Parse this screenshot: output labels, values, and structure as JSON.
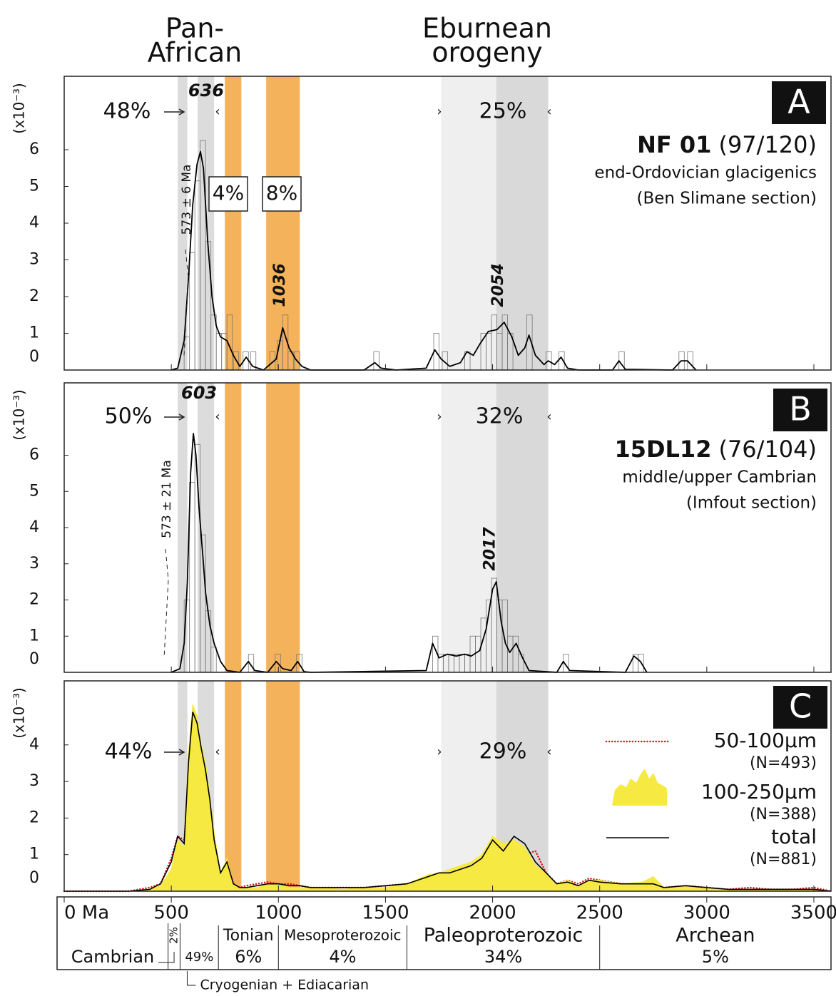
{
  "header": {
    "left": [
      "Pan-",
      "African"
    ],
    "right": [
      "Eburnean",
      "orogeny"
    ]
  },
  "x_axis": {
    "xlim": [
      0,
      3580
    ],
    "xticks": [
      {
        "value": 0,
        "label": "0 Ma"
      },
      500,
      1000,
      1500,
      2000,
      2500,
      3000,
      3500
    ]
  },
  "bands": [
    {
      "range": [
        530,
        575
      ],
      "color": "#dcdcdc"
    },
    {
      "range": [
        623,
        700
      ],
      "color": "#dcdcdc"
    },
    {
      "range": [
        750,
        827
      ],
      "color": "#f4b25a"
    },
    {
      "range": [
        943,
        1100
      ],
      "color": "#f4b25a"
    },
    {
      "range": [
        1760,
        2017
      ],
      "color": "#efefef"
    },
    {
      "range": [
        2017,
        2260
      ],
      "color": "#d9d9d9"
    }
  ],
  "chart_data": [
    {
      "type": "kde",
      "label": "A",
      "sample": "NF 01",
      "count": "(97/120)",
      "description": [
        "end-Ordovician glacigenics",
        "(Ben Slimane section)"
      ],
      "ylabel": "(x10⁻³)",
      "ylim": [
        0,
        8
      ],
      "yticks": [
        0,
        1,
        2,
        3,
        4,
        5,
        6
      ],
      "percents": [
        "48%",
        "25%"
      ],
      "boxed_percents": [
        "4%",
        "8%"
      ],
      "age_note": "573 ± 6 Ma",
      "peaks": [
        636,
        1036,
        2054
      ],
      "curve": {
        "color": "#000000",
        "x": [
          500,
          530,
          560,
          580,
          600,
          620,
          636,
          650,
          670,
          690,
          710,
          730,
          760,
          790,
          820,
          850,
          880,
          930,
          960,
          990,
          1020,
          1050,
          1080,
          1110,
          1150,
          1400,
          1450,
          1480,
          1550,
          1690,
          1730,
          1760,
          1800,
          1850,
          1880,
          1910,
          1940,
          1980,
          2020,
          2054,
          2090,
          2120,
          2150,
          2170,
          2200,
          2240,
          2260,
          2290,
          2320,
          2350,
          2400,
          2560,
          2590,
          2620,
          2840,
          2880,
          2910,
          2950
        ],
        "values": [
          0,
          0.05,
          0.8,
          2.5,
          4.5,
          5.6,
          5.95,
          5.5,
          3.5,
          2.0,
          1.2,
          0.9,
          0.8,
          0.4,
          0.1,
          0.35,
          0.1,
          0,
          0.15,
          0.3,
          1.15,
          0.6,
          0.3,
          0.1,
          0,
          0,
          0.2,
          0.05,
          0,
          0.05,
          0.55,
          0.3,
          0.1,
          0.2,
          0.5,
          0.4,
          0.7,
          1.05,
          1.1,
          1.3,
          0.9,
          0.4,
          0.6,
          0.95,
          0.4,
          0.15,
          0.25,
          0.15,
          0.35,
          0.05,
          0,
          0,
          0.25,
          0.02,
          0,
          0.25,
          0.25,
          0
        ]
      },
      "histogram": {
        "color": "#777777",
        "bin_width": 25,
        "x": [
          560,
          585,
          610,
          635,
          660,
          685,
          710,
          735,
          760,
          790,
          835,
          870,
          960,
          995,
          1020,
          1045,
          1075,
          1445,
          1725,
          1765,
          1870,
          1945,
          1970,
          1995,
          2020,
          2045,
          2070,
          2160,
          2250,
          2310,
          2590,
          2870,
          2910
        ],
        "values": [
          0.9,
          3.2,
          5.15,
          6.25,
          3.5,
          1.5,
          1.0,
          1.0,
          1.5,
          0.5,
          0.5,
          0.5,
          0.5,
          0.8,
          1.5,
          0.5,
          0.5,
          0.5,
          1.0,
          0.5,
          0.5,
          1.0,
          1.0,
          1.5,
          1.0,
          1.5,
          1.0,
          1.5,
          0.5,
          0.5,
          0.5,
          0.5,
          0.5
        ]
      }
    },
    {
      "type": "kde",
      "label": "B",
      "sample": "15DL12",
      "count": "(76/104)",
      "description": [
        "middle/upper Cambrian",
        "(Imfout section)"
      ],
      "ylabel": "(x10⁻³)",
      "ylim": [
        0,
        8
      ],
      "yticks": [
        0,
        1,
        2,
        3,
        4,
        5,
        6
      ],
      "percents": [
        "50%",
        "32%"
      ],
      "age_note": "573 ± 21 Ma",
      "peaks": [
        603,
        2017
      ],
      "curve": {
        "color": "#000000",
        "x": [
          500,
          540,
          560,
          575,
          590,
          603,
          615,
          630,
          650,
          660,
          680,
          700,
          730,
          760,
          820,
          860,
          890,
          950,
          990,
          1020,
          1060,
          1090,
          1120,
          1150,
          1690,
          1720,
          1750,
          1790,
          1830,
          1870,
          1900,
          1940,
          1970,
          2000,
          2017,
          2040,
          2060,
          2080,
          2110,
          2140,
          2170,
          2300,
          2330,
          2360,
          2620,
          2660,
          2690,
          2720
        ],
        "values": [
          0,
          0.1,
          0.8,
          2.5,
          5.5,
          6.6,
          6.0,
          4.5,
          3.0,
          2.2,
          1.3,
          0.8,
          0.3,
          0.05,
          0,
          0.3,
          0.05,
          0,
          0.3,
          0.1,
          0.05,
          0.3,
          0.02,
          0,
          0.05,
          0.8,
          0.4,
          0.5,
          0.45,
          0.5,
          0.45,
          0.6,
          1.2,
          2.3,
          2.5,
          1.4,
          0.8,
          0.55,
          0.8,
          0.4,
          0.05,
          0,
          0.3,
          0.05,
          0,
          0.45,
          0.3,
          0
        ]
      },
      "histogram": {
        "color": "#777777",
        "bin_width": 25,
        "x": [
          560,
          585,
          610,
          635,
          660,
          685,
          860,
          985,
          1085,
          1720,
          1745,
          1770,
          1795,
          1820,
          1845,
          1870,
          1895,
          1920,
          1945,
          1970,
          1995,
          2020,
          2045,
          2070,
          2095,
          2120,
          2330,
          2655,
          2680
        ],
        "values": [
          2.0,
          5.25,
          6.3,
          3.8,
          1.7,
          0.7,
          0.5,
          0.5,
          0.5,
          1.0,
          0.5,
          0.5,
          0.5,
          0.5,
          0.5,
          0.5,
          1.0,
          1.0,
          1.5,
          2.0,
          2.6,
          2.0,
          2.0,
          1.0,
          1.0,
          0.5,
          0.5,
          0.5,
          0.5
        ]
      }
    },
    {
      "type": "multi",
      "label": "C",
      "ylabel": "(x10⁻³)",
      "ylim": [
        0,
        5.75
      ],
      "yticks": [
        0,
        1,
        2,
        3,
        4
      ],
      "percents": [
        "44%",
        "29%"
      ],
      "x": [
        0,
        100,
        200,
        300,
        400,
        450,
        500,
        530,
        560,
        580,
        600,
        620,
        640,
        660,
        680,
        700,
        730,
        760,
        790,
        820,
        850,
        900,
        950,
        1000,
        1050,
        1100,
        1150,
        1200,
        1300,
        1400,
        1500,
        1600,
        1700,
        1750,
        1800,
        1850,
        1900,
        1950,
        2000,
        2050,
        2100,
        2150,
        2200,
        2250,
        2300,
        2350,
        2400,
        2450,
        2500,
        2600,
        2700,
        2750,
        2800,
        2900,
        3000,
        3100,
        3200,
        3300,
        3400,
        3500,
        3580
      ],
      "series": [
        {
          "name": "50-100µm",
          "n_label": "(N=493)",
          "color": "#d7191c",
          "style": "dotted",
          "values": [
            0,
            0,
            0,
            0,
            0.1,
            0.2,
            0.9,
            1.5,
            1.4,
            3.0,
            4.4,
            4.2,
            3.6,
            3.0,
            2.3,
            1.2,
            0.5,
            0.75,
            0.2,
            0.1,
            0.15,
            0.2,
            0.25,
            0.2,
            0.2,
            0.15,
            0.1,
            0.1,
            0.1,
            0.1,
            0.15,
            0.2,
            0.35,
            0.45,
            0.45,
            0.55,
            0.6,
            0.8,
            1.2,
            1.0,
            1.05,
            1.0,
            1.1,
            0.5,
            0.2,
            0.3,
            0.2,
            0.35,
            0.3,
            0.2,
            0.2,
            0.15,
            0.1,
            0.15,
            0.1,
            0.05,
            0.1,
            0.05,
            0.05,
            0.1,
            0
          ]
        },
        {
          "name": "100-250µm",
          "n_label": "(N=388)",
          "color": "#f5e942",
          "style": "area",
          "values": [
            0,
            0,
            0,
            0,
            0.05,
            0.15,
            0.6,
            1.4,
            1.2,
            3.8,
            5.1,
            4.8,
            4.0,
            3.5,
            2.6,
            1.6,
            0.5,
            0.9,
            0.2,
            0.1,
            0.1,
            0.1,
            0.2,
            0.2,
            0.1,
            0.1,
            0.1,
            0.1,
            0.05,
            0.1,
            0.1,
            0.2,
            0.45,
            0.5,
            0.6,
            0.7,
            0.8,
            1.0,
            1.5,
            1.3,
            1.4,
            1.2,
            0.7,
            0.5,
            0.2,
            0.3,
            0.15,
            0.3,
            0.3,
            0.2,
            0.25,
            0.4,
            0.1,
            0.15,
            0.1,
            0.05,
            0.05,
            0.05,
            0.05,
            0.05,
            0
          ]
        },
        {
          "name": "total",
          "n_label": "(N=881)",
          "color": "#000000",
          "style": "line",
          "values": [
            0,
            0,
            0,
            0,
            0.05,
            0.2,
            0.8,
            1.5,
            1.3,
            3.5,
            4.9,
            4.6,
            3.9,
            3.3,
            2.5,
            1.4,
            0.5,
            0.8,
            0.2,
            0.1,
            0.1,
            0.15,
            0.2,
            0.2,
            0.15,
            0.15,
            0.1,
            0.1,
            0.1,
            0.1,
            0.15,
            0.2,
            0.4,
            0.5,
            0.5,
            0.6,
            0.7,
            0.9,
            1.4,
            1.1,
            1.5,
            1.3,
            0.8,
            0.5,
            0.2,
            0.25,
            0.15,
            0.3,
            0.25,
            0.2,
            0.2,
            0.2,
            0.1,
            0.15,
            0.1,
            0.05,
            0.05,
            0.05,
            0.05,
            0.05,
            0
          ]
        }
      ]
    }
  ],
  "timescale": {
    "boundaries": [
      485,
      541,
      720,
      1000,
      1600,
      2500
    ],
    "units": [
      {
        "name": "Cambrian",
        "percent": "2%"
      },
      {
        "name": "Cryogenian + Ediacarian",
        "percent": "49%"
      },
      {
        "name": "Tonian",
        "percent": "6%"
      },
      {
        "name": "Mesoproterozoic",
        "percent": "4%"
      },
      {
        "name": "Paleoproterozoic",
        "percent": "34%"
      },
      {
        "name": "Archean",
        "percent": "5%"
      }
    ]
  }
}
